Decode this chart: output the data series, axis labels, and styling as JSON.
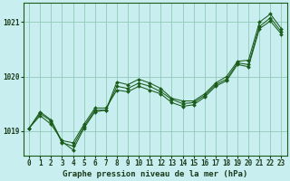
{
  "xlabel": "Graphe pression niveau de la mer (hPa)",
  "xlim": [
    -0.5,
    23.5
  ],
  "ylim": [
    1018.55,
    1021.35
  ],
  "yticks": [
    1019,
    1020,
    1021
  ],
  "xticks": [
    0,
    1,
    2,
    3,
    4,
    5,
    6,
    7,
    8,
    9,
    10,
    11,
    12,
    13,
    14,
    15,
    16,
    17,
    18,
    19,
    20,
    21,
    22,
    23
  ],
  "bg_color": "#c8eef0",
  "grid_color": "#90c8b8",
  "line_color": "#1a5c1a",
  "marker_color": "#1a5c1a",
  "series1": [
    1019.05,
    1019.35,
    1019.2,
    1018.8,
    1018.65,
    1019.05,
    1019.35,
    1019.38,
    1019.9,
    1019.85,
    1019.95,
    1019.88,
    1019.78,
    1019.6,
    1019.55,
    1019.55,
    1019.68,
    1019.88,
    1020.0,
    1020.28,
    1020.3,
    1021.0,
    1021.15,
    1020.88
  ],
  "series2": [
    1019.05,
    1019.32,
    1019.18,
    1018.78,
    1018.72,
    1019.08,
    1019.38,
    1019.38,
    1019.82,
    1019.78,
    1019.88,
    1019.82,
    1019.72,
    1019.58,
    1019.5,
    1019.52,
    1019.65,
    1019.85,
    1019.95,
    1020.25,
    1020.22,
    1020.92,
    1021.08,
    1020.82
  ],
  "series3": [
    1019.05,
    1019.28,
    1019.12,
    1018.82,
    1018.78,
    1019.12,
    1019.42,
    1019.42,
    1019.75,
    1019.72,
    1019.82,
    1019.75,
    1019.68,
    1019.52,
    1019.45,
    1019.48,
    1019.62,
    1019.82,
    1019.92,
    1020.22,
    1020.18,
    1020.88,
    1021.02,
    1020.78
  ],
  "hours": [
    0,
    1,
    2,
    3,
    4,
    5,
    6,
    7,
    8,
    9,
    10,
    11,
    12,
    13,
    14,
    15,
    16,
    17,
    18,
    19,
    20,
    21,
    22,
    23
  ],
  "tick_fontsize": 5.5,
  "label_fontsize": 6.5
}
